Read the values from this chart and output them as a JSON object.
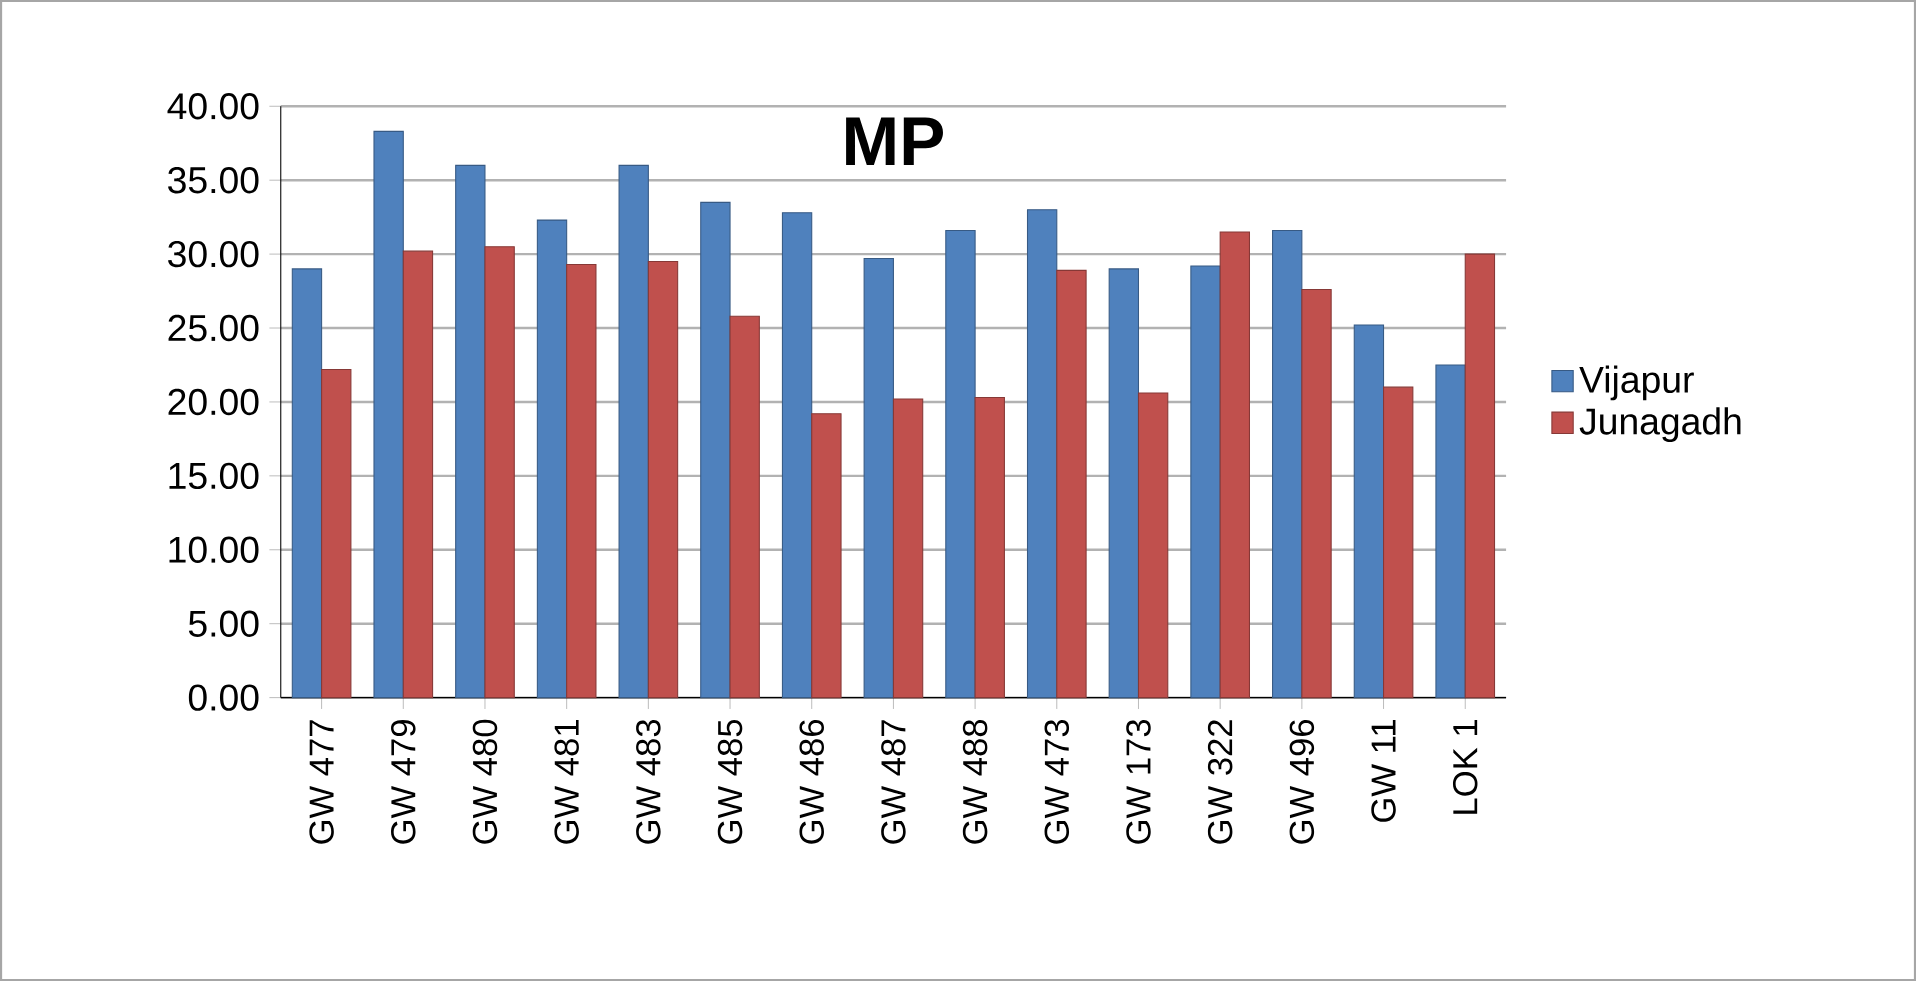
{
  "chart_data": {
    "type": "bar",
    "title": "MP",
    "categories": [
      "GW 477",
      "GW 479",
      "GW 480",
      "GW 481",
      "GW 483",
      "GW 485",
      "GW 486",
      "GW 487",
      "GW 488",
      "GW 473",
      "GW 173",
      "GW 322",
      "GW 496",
      "GW 11",
      "LOK 1"
    ],
    "series": [
      {
        "name": "Vijapur",
        "color": "#4f81bd",
        "values": [
          29.0,
          38.3,
          36.0,
          32.3,
          36.0,
          33.5,
          32.8,
          29.7,
          31.6,
          33.0,
          29.0,
          29.2,
          31.6,
          25.2,
          22.5
        ]
      },
      {
        "name": "Junagadh",
        "color": "#c0504d",
        "values": [
          22.2,
          30.2,
          30.5,
          29.3,
          29.5,
          25.8,
          19.2,
          20.2,
          20.3,
          28.9,
          20.6,
          31.5,
          27.6,
          21.0,
          30.0
        ]
      }
    ],
    "ylim": [
      0,
      40
    ],
    "yticks": [
      {
        "value": 0,
        "label": "0.00"
      },
      {
        "value": 5,
        "label": "5.00"
      },
      {
        "value": 10,
        "label": "10.00"
      },
      {
        "value": 15,
        "label": "15.00"
      },
      {
        "value": 20,
        "label": "20.00"
      },
      {
        "value": 25,
        "label": "25.00"
      },
      {
        "value": 30,
        "label": "30.00"
      },
      {
        "value": 35,
        "label": "35.00"
      },
      {
        "value": 40,
        "label": "40.00"
      }
    ],
    "grid": "y",
    "legend": "right"
  }
}
